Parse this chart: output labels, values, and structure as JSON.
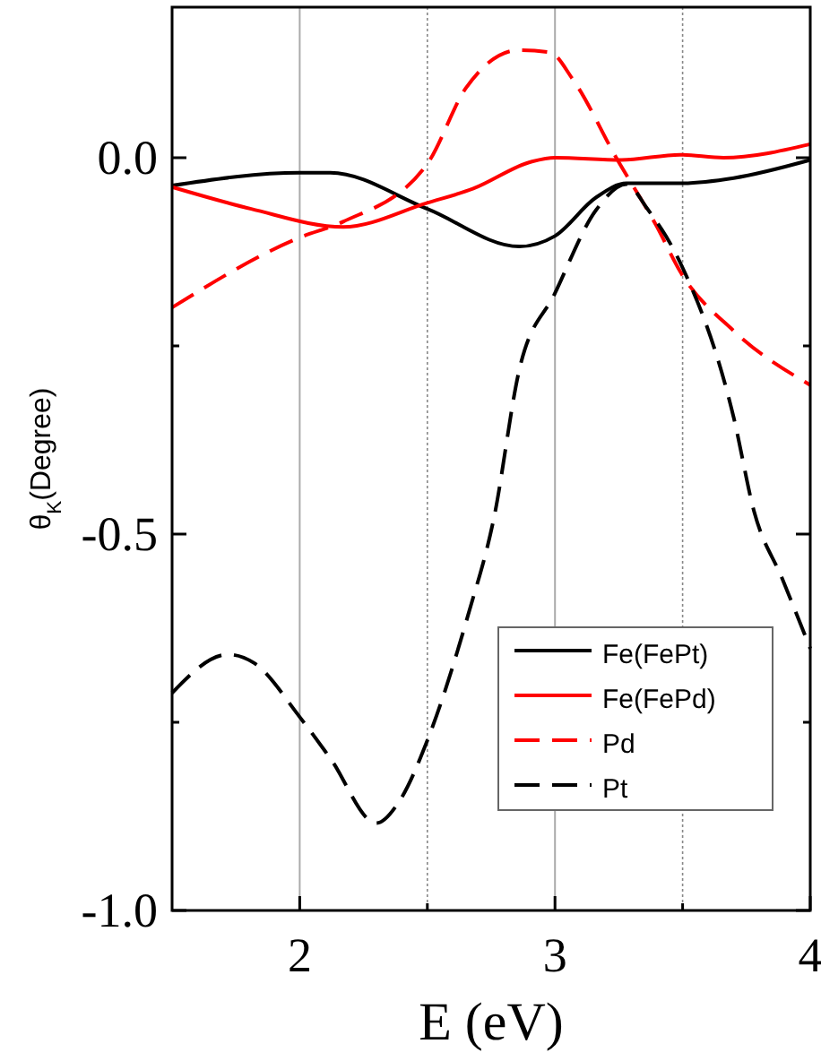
{
  "chart_data": {
    "type": "line",
    "xlabel": "E (eV)",
    "ylabel": "θ$_{K}$(Degree)",
    "xlim": [
      1.5,
      4
    ],
    "xticks": [
      2,
      {
        "value": 2.5,
        "label": null
      },
      3,
      {
        "value": 3.5,
        "label": null
      },
      4
    ],
    "ylim": [
      -1.0,
      0.2
    ],
    "yticks": [
      {
        "value": -1.0,
        "label": "-1.0"
      },
      {
        "value": -0.75,
        "label": null
      },
      {
        "value": -0.5,
        "label": "-0.5"
      },
      {
        "value": -0.25,
        "label": null
      },
      {
        "value": 0,
        "label": "0.0"
      }
    ],
    "grid": "x",
    "legend": "bottom right",
    "marker": "none",
    "series": [
      {
        "name": "Fe(FePt)",
        "color": "#000000",
        "line_style": "solid",
        "x": [
          1.5,
          2.0,
          2.12,
          2.5,
          2.86,
          3.0,
          3.16,
          3.28,
          3.49,
          3.7,
          4.0
        ],
        "values": [
          -0.037,
          -0.02,
          -0.02,
          -0.068,
          -0.118,
          -0.104,
          -0.053,
          -0.034,
          -0.034,
          -0.027,
          -0.003
        ]
      },
      {
        "name": "Fe(FePd)",
        "color": "#ff0000",
        "line_style": "solid",
        "x": [
          1.5,
          1.81,
          2.17,
          2.5,
          2.68,
          2.91,
          3.0,
          3.26,
          3.49,
          3.66,
          4.0
        ],
        "values": [
          -0.039,
          -0.068,
          -0.092,
          -0.06,
          -0.041,
          -0.005,
          0.0,
          -0.003,
          0.004,
          0.0,
          0.018
        ]
      },
      {
        "name": "Pd",
        "color": "#ff0000",
        "line_style": "dashed",
        "x": [
          1.5,
          2.0,
          2.17,
          2.5,
          2.65,
          2.86,
          2.98,
          3.07,
          3.24,
          3.4,
          3.49,
          3.7,
          4.0
        ],
        "values": [
          -0.199,
          -0.106,
          -0.085,
          -0.008,
          0.092,
          0.143,
          0.14,
          0.104,
          0.0,
          -0.092,
          -0.151,
          -0.23,
          -0.302
        ]
      },
      {
        "name": "Pt",
        "color": "#000000",
        "line_style": "dashed",
        "x": [
          1.5,
          1.72,
          1.82,
          2.0,
          2.12,
          2.3,
          2.39,
          2.5,
          2.66,
          2.76,
          2.86,
          3.0,
          3.16,
          3.28,
          3.36,
          3.49,
          3.7,
          3.78,
          3.89,
          4.0
        ],
        "values": [
          -0.711,
          -0.66,
          -0.671,
          -0.743,
          -0.798,
          -0.884,
          -0.855,
          -0.774,
          -0.607,
          -0.48,
          -0.282,
          -0.18,
          -0.07,
          -0.035,
          -0.067,
          -0.139,
          -0.345,
          -0.47,
          -0.559,
          -0.652
        ]
      }
    ]
  }
}
